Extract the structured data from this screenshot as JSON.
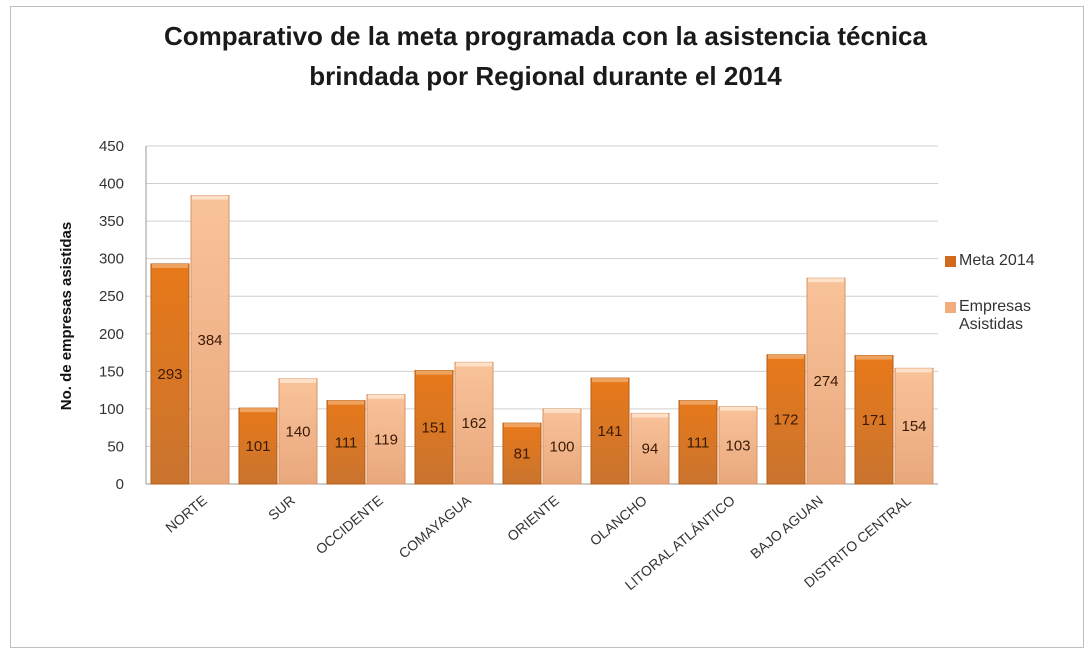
{
  "chart_data": {
    "type": "bar",
    "title": "Comparativo de la meta programada con la asistencia técnica brindada por Regional durante el 2014",
    "title_lines": [
      "Comparativo de la meta programada con la asistencia técnica",
      "brindada por Regional durante el 2014"
    ],
    "xlabel": "",
    "ylabel": "No. de empresas asistidas",
    "ylim": [
      0,
      450
    ],
    "yticks": [
      0,
      50,
      100,
      150,
      200,
      250,
      300,
      350,
      400,
      450
    ],
    "categories": [
      "NORTE",
      "SUR",
      "OCCIDENTE",
      "COMAYAGUA",
      "ORIENTE",
      "OLANCHO",
      "LITORAL ATLÁNTICO",
      "BAJO AGUAN",
      "DISTRITO CENTRAL"
    ],
    "series": [
      {
        "name": "Meta 2014",
        "values": [
          293,
          101,
          111,
          151,
          81,
          141,
          111,
          172,
          171
        ],
        "color": "#e07a1f"
      },
      {
        "name": "Empresas Asistidas",
        "values": [
          384,
          140,
          119,
          162,
          100,
          94,
          103,
          274,
          154
        ],
        "color": "#f6b98b"
      }
    ],
    "legend": {
      "placement": "right",
      "labels": [
        "Meta 2014",
        "Empresas",
        "Asistidas"
      ]
    },
    "grid": true,
    "data_labels": true
  }
}
